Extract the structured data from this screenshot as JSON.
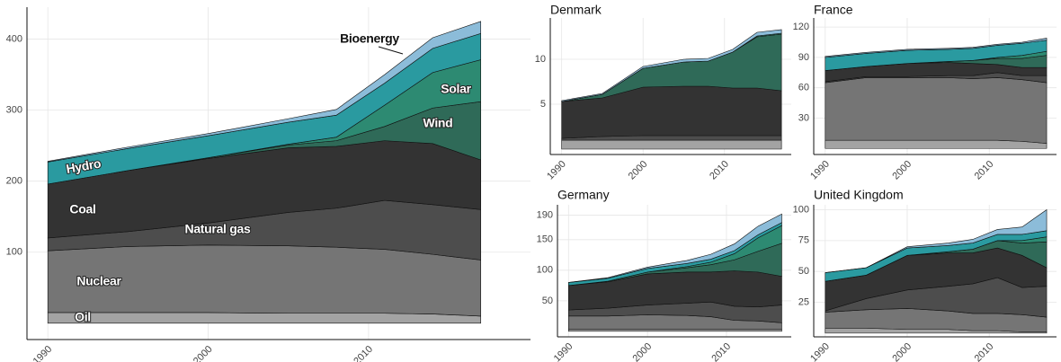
{
  "chart_data": [
    {
      "type": "area",
      "x": [
        1990,
        1995,
        2000,
        2005,
        2008,
        2011,
        2014,
        2017
      ],
      "xlim": [
        1988.7,
        2020.1
      ],
      "xticks": [
        1990,
        2000,
        2010
      ],
      "ylim": [
        -23,
        445
      ],
      "yticks": [
        100,
        200,
        300,
        400
      ],
      "grid": true,
      "series": [
        {
          "name": "Oil",
          "color": "#a3a3a3",
          "values": [
            15,
            15,
            15,
            14,
            14,
            14,
            13,
            10
          ]
        },
        {
          "name": "Nuclear",
          "color": "#757575",
          "values": [
            87,
            93,
            95,
            95,
            93,
            90,
            84,
            79
          ]
        },
        {
          "name": "Natural gas",
          "color": "#4d4d4d",
          "values": [
            18,
            21,
            31,
            47,
            55,
            69,
            70,
            71
          ]
        },
        {
          "name": "Coal",
          "color": "#333333",
          "values": [
            76,
            86,
            91,
            91,
            87,
            84,
            86,
            70
          ]
        },
        {
          "name": "Wind",
          "color": "#2f6a58",
          "values": [
            0,
            0,
            1,
            4,
            8,
            20,
            50,
            82
          ]
        },
        {
          "name": "Solar",
          "color": "#2d8a72",
          "values": [
            0,
            0,
            0,
            1,
            5,
            30,
            50,
            59
          ]
        },
        {
          "name": "Hydro",
          "color": "#2a9aa0",
          "values": [
            31,
            31,
            31,
            31,
            31,
            31,
            34,
            37
          ]
        },
        {
          "name": "Bioenergy",
          "color": "#8cbcd9",
          "values": [
            1,
            2,
            3,
            5,
            8,
            12,
            15,
            17
          ]
        }
      ]
    },
    {
      "type": "area",
      "title": "Denmark",
      "x": [
        1990,
        1995,
        2000,
        2005,
        2008,
        2011,
        2014,
        2017
      ],
      "xlim": [
        1988.6,
        2018.2
      ],
      "xticks": [
        1990,
        2000,
        2010
      ],
      "ylim": [
        -0.6,
        14.6
      ],
      "yticks": [
        5,
        10
      ],
      "grid": true,
      "series": [
        {
          "color": "#a3a3a3",
          "values": [
            1,
            1,
            1,
            1,
            1,
            1,
            1,
            1
          ]
        },
        {
          "color": "#757575",
          "values": [
            0,
            0,
            0,
            0,
            0,
            0,
            0,
            0
          ]
        },
        {
          "color": "#4d4d4d",
          "values": [
            0.2,
            0.4,
            0.5,
            0.5,
            0.5,
            0.5,
            0.5,
            0.5
          ]
        },
        {
          "color": "#333333",
          "values": [
            4.1,
            4.3,
            5.4,
            5.5,
            5.5,
            5.3,
            5.3,
            5.0
          ]
        },
        {
          "color": "#2f6a58",
          "values": [
            0,
            0.4,
            2.1,
            2.7,
            2.8,
            4.0,
            5.7,
            6.3
          ]
        },
        {
          "color": "#2d8a72",
          "values": [
            0,
            0,
            0,
            0,
            0,
            0,
            0.1,
            0.1
          ]
        },
        {
          "color": "#2a9aa0",
          "values": [
            0,
            0,
            0,
            0,
            0,
            0,
            0,
            0
          ]
        },
        {
          "color": "#8cbcd9",
          "values": [
            0.1,
            0.1,
            0.2,
            0.3,
            0.3,
            0.3,
            0.4,
            0.4
          ]
        }
      ]
    },
    {
      "type": "area",
      "title": "France",
      "x": [
        1990,
        1995,
        2000,
        2005,
        2008,
        2011,
        2014,
        2017
      ],
      "xlim": [
        1988.6,
        2018.2
      ],
      "xticks": [
        1990,
        2000,
        2010
      ],
      "ylim": [
        -6,
        129
      ],
      "yticks": [
        30,
        60,
        90,
        120
      ],
      "grid": true,
      "series": [
        {
          "color": "#a3a3a3",
          "values": [
            8,
            8,
            8,
            8,
            8,
            8,
            7,
            5
          ]
        },
        {
          "color": "#757575",
          "values": [
            57,
            62,
            62,
            62,
            61,
            62,
            61,
            60
          ]
        },
        {
          "color": "#4d4d4d",
          "values": [
            1,
            1,
            1,
            2,
            3,
            5,
            4,
            7
          ]
        },
        {
          "color": "#333333",
          "values": [
            11,
            10,
            13,
            13,
            12,
            8,
            8,
            8
          ]
        },
        {
          "color": "#2f6a58",
          "values": [
            0,
            0,
            0,
            1,
            3,
            6,
            9,
            12
          ]
        },
        {
          "color": "#2d8a72",
          "values": [
            0,
            0,
            0,
            0,
            0,
            1,
            3,
            4
          ]
        },
        {
          "color": "#2a9aa0",
          "values": [
            13,
            13,
            13,
            12,
            12,
            12,
            12,
            11
          ]
        },
        {
          "color": "#8cbcd9",
          "values": [
            1,
            1,
            1,
            1,
            1,
            1,
            1,
            2
          ]
        }
      ]
    },
    {
      "type": "area",
      "title": "Germany",
      "x": [
        1990,
        1995,
        2000,
        2005,
        2008,
        2011,
        2014,
        2017
      ],
      "xlim": [
        1988.6,
        2018.2
      ],
      "xticks": [
        1990,
        2000,
        2010
      ],
      "ylim": [
        -9,
        207
      ],
      "yticks": [
        50,
        100,
        150,
        190
      ],
      "grid": true,
      "series": [
        {
          "color": "#a3a3a3",
          "values": [
            3,
            3,
            3,
            3,
            3,
            3,
            3,
            3
          ]
        },
        {
          "color": "#757575",
          "values": [
            22,
            22,
            24,
            23,
            21,
            15,
            14,
            11
          ]
        },
        {
          "color": "#4d4d4d",
          "values": [
            10,
            13,
            16,
            20,
            24,
            23,
            23,
            29
          ]
        },
        {
          "color": "#333333",
          "values": [
            40,
            43,
            51,
            51,
            49,
            58,
            57,
            47
          ]
        },
        {
          "color": "#2f6a58",
          "values": [
            0,
            1,
            3,
            7,
            12,
            18,
            34,
            54
          ]
        },
        {
          "color": "#2d8a72",
          "values": [
            0,
            0,
            0,
            2,
            4,
            10,
            22,
            29
          ]
        },
        {
          "color": "#2a9aa0",
          "values": [
            5,
            5,
            6,
            5,
            5,
            5,
            5,
            5
          ]
        },
        {
          "color": "#8cbcd9",
          "values": [
            0,
            1,
            2,
            5,
            8,
            11,
            14,
            14
          ]
        }
      ]
    },
    {
      "type": "area",
      "title": "United Kingdom",
      "x": [
        1990,
        1995,
        2000,
        2005,
        2008,
        2011,
        2014,
        2017
      ],
      "xlim": [
        1988.6,
        2018.2
      ],
      "xticks": [
        1990,
        2000,
        2010
      ],
      "ylim": [
        -3,
        104
      ],
      "yticks": [
        25,
        50,
        75,
        100
      ],
      "grid": true,
      "series": [
        {
          "color": "#a3a3a3",
          "values": [
            4,
            4,
            3,
            3,
            2,
            2,
            1,
            1
          ]
        },
        {
          "color": "#757575",
          "values": [
            13,
            15,
            17,
            15,
            14,
            14,
            14,
            12
          ]
        },
        {
          "color": "#4d4d4d",
          "values": [
            1,
            9,
            15,
            20,
            24,
            29,
            22,
            25
          ]
        },
        {
          "color": "#333333",
          "values": [
            24,
            19,
            28,
            27,
            25,
            24,
            26,
            15
          ]
        },
        {
          "color": "#2f6a58",
          "values": [
            0,
            0,
            0,
            1,
            3,
            6,
            10,
            21
          ]
        },
        {
          "color": "#2d8a72",
          "values": [
            0,
            0,
            0,
            0,
            0,
            0,
            2,
            4
          ]
        },
        {
          "color": "#2a9aa0",
          "values": [
            7,
            6,
            6,
            5,
            5,
            5,
            5,
            5
          ]
        },
        {
          "color": "#8cbcd9",
          "values": [
            0,
            0,
            1,
            2,
            3,
            4,
            6,
            17
          ]
        }
      ]
    }
  ]
}
